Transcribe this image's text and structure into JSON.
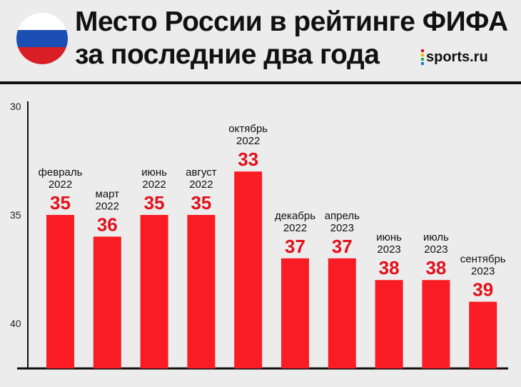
{
  "header": {
    "title_line1": "Место России в рейтинге ФИФА",
    "title_line2": "за последние два года",
    "brand": "sports.ru",
    "flag_colors": [
      "#ffffff",
      "#1c4fb3",
      "#d91f26"
    ],
    "brand_dot_colors": [
      "#e3101b",
      "#f7b500",
      "#2fb34a",
      "#1c74d9"
    ]
  },
  "chart_data": {
    "type": "bar",
    "title": "Место России в рейтинге ФИФА за последние два года",
    "xlabel": "",
    "ylabel": "",
    "ylim": [
      30,
      42
    ],
    "y_inverted": true,
    "yticks": [
      30,
      35,
      40
    ],
    "grid": false,
    "bar_color": "#fa1c24",
    "value_color": "#e3101b",
    "categories": [
      [
        "февраль",
        "2022"
      ],
      [
        "март",
        "2022"
      ],
      [
        "июнь",
        "2022"
      ],
      [
        "август",
        "2022"
      ],
      [
        "октябрь",
        "2022"
      ],
      [
        "декабрь",
        "2022"
      ],
      [
        "апрель",
        "2023"
      ],
      [
        "июнь",
        "2023"
      ],
      [
        "июль",
        "2023"
      ],
      [
        "сентябрь",
        "2023"
      ]
    ],
    "values": [
      35,
      36,
      35,
      35,
      33,
      37,
      37,
      38,
      38,
      39
    ]
  }
}
